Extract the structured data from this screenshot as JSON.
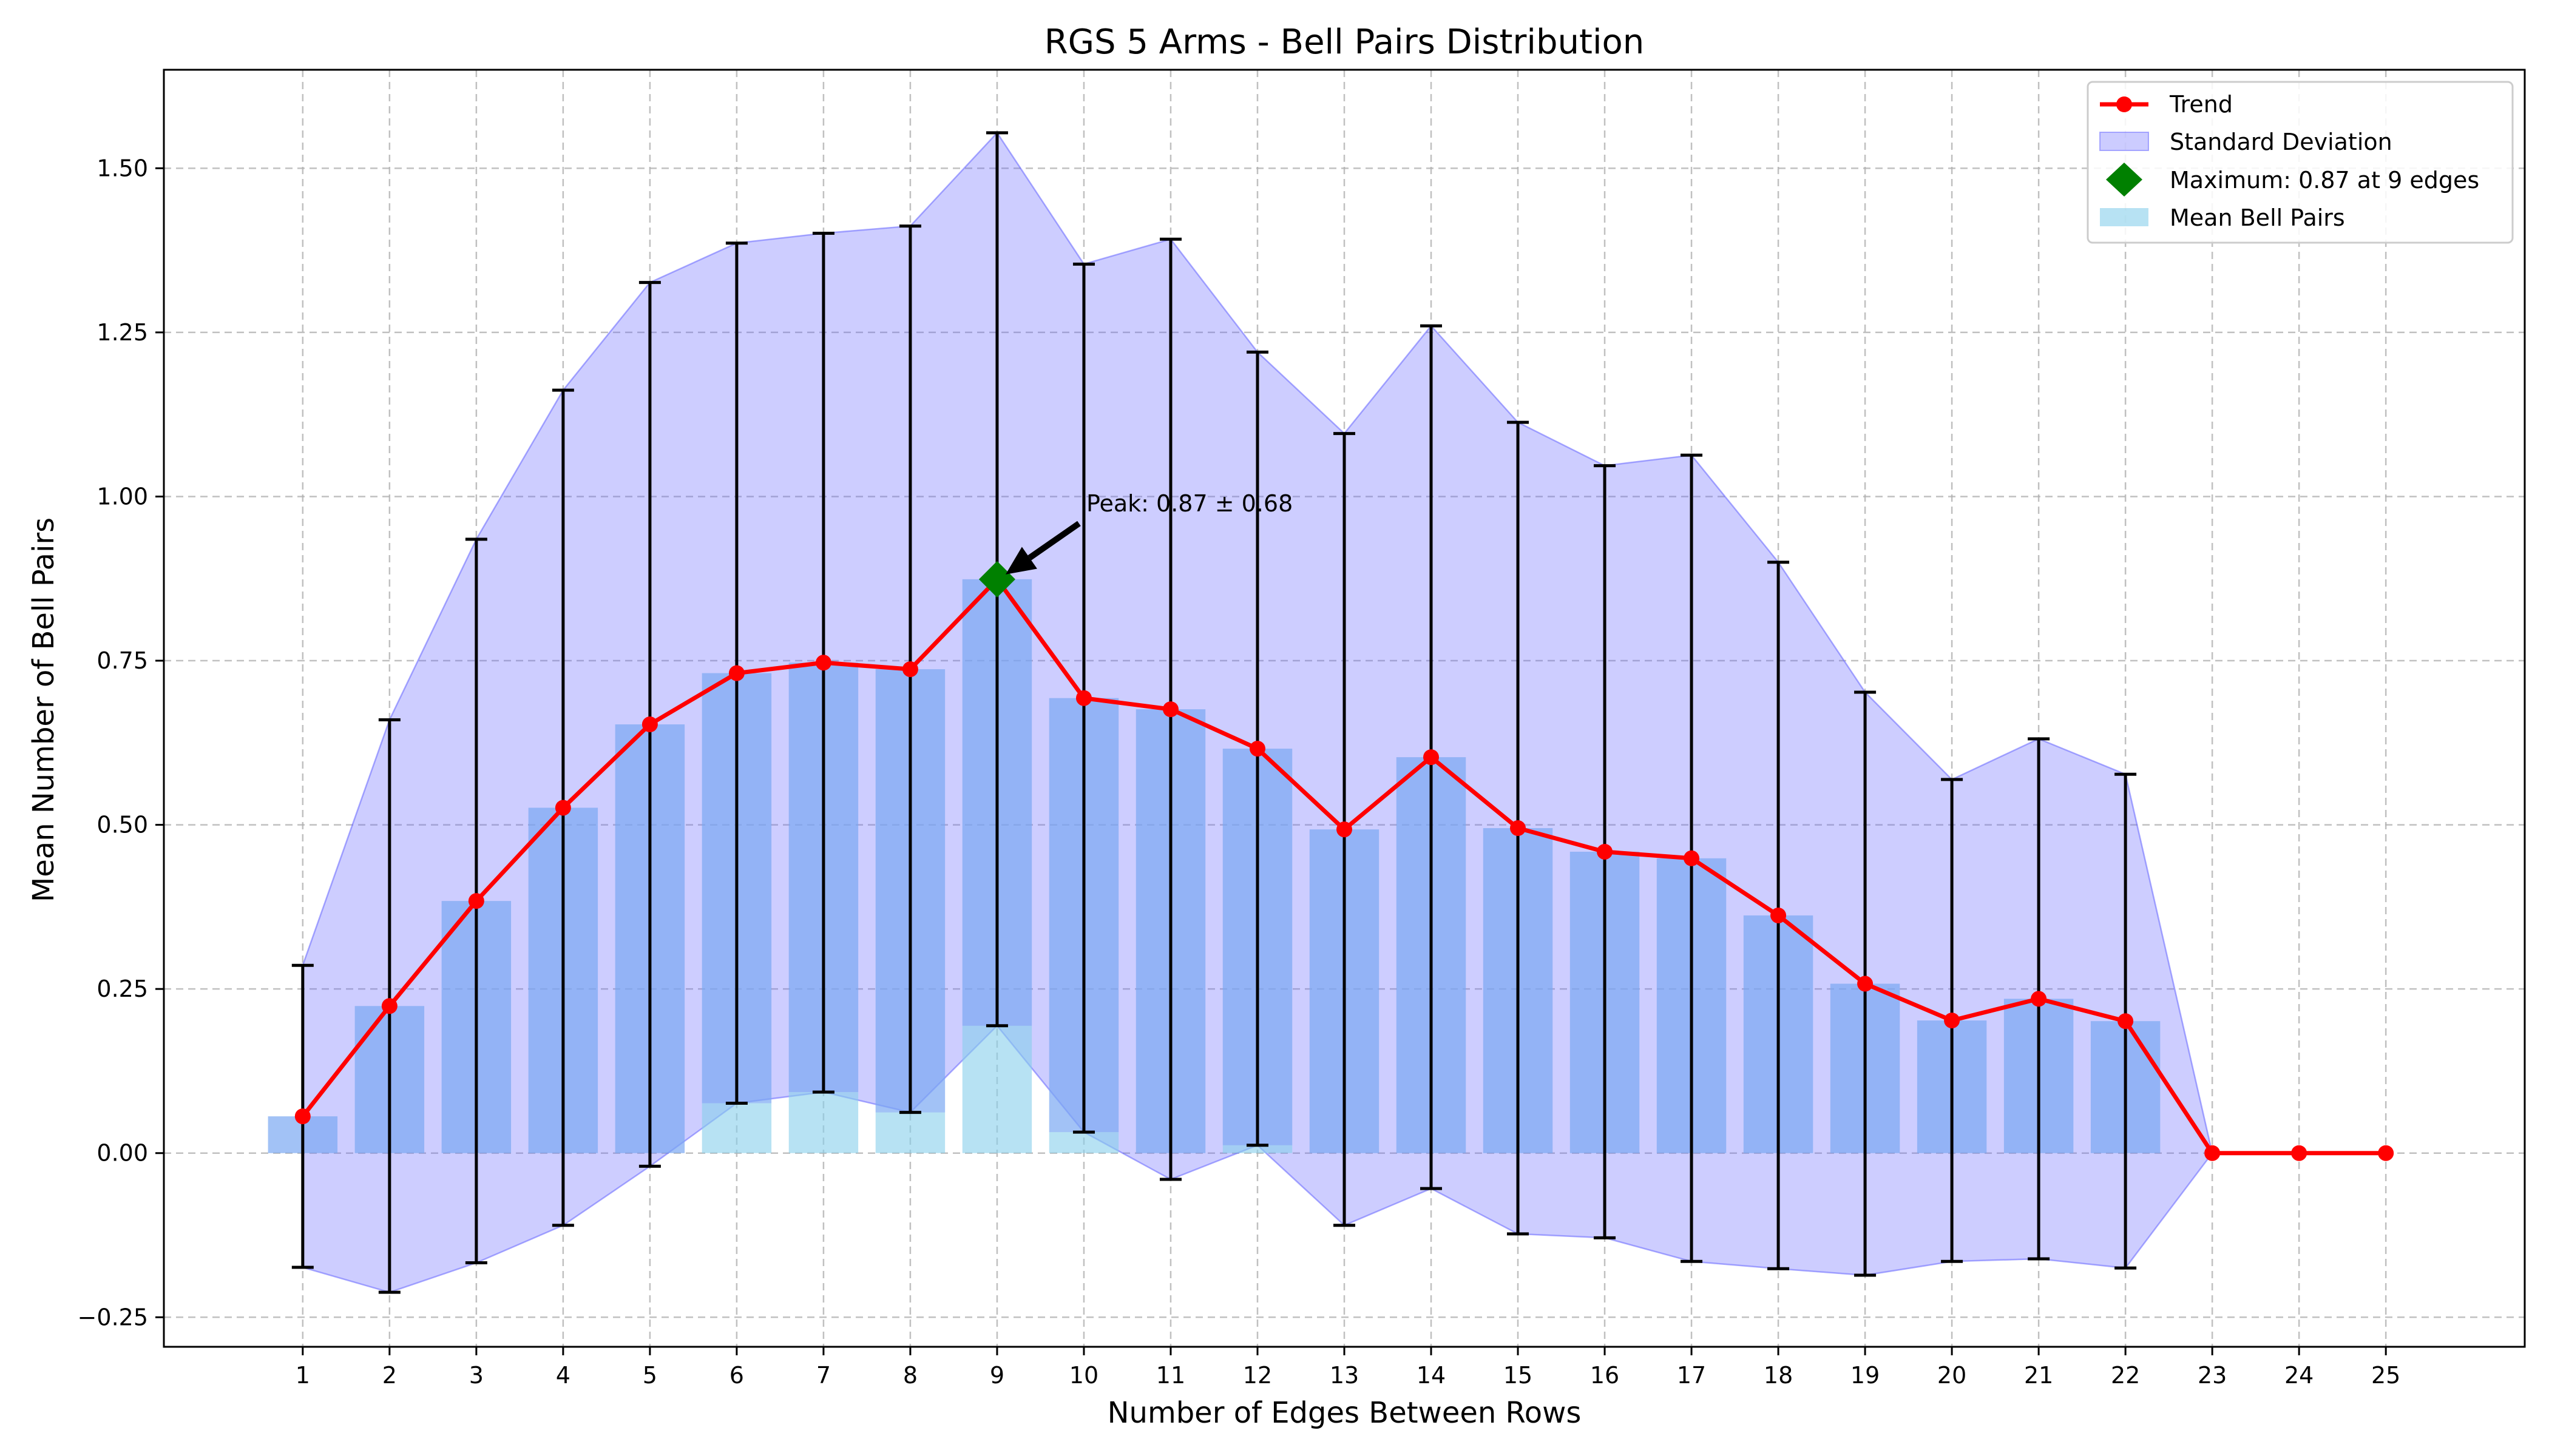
{
  "chart_data": {
    "type": "bar",
    "title": "RGS 5 Arms - Bell Pairs Distribution",
    "xlabel": "Number of Edges Between Rows",
    "ylabel": "Mean Number of Bell Pairs",
    "x": [
      1,
      2,
      3,
      4,
      5,
      6,
      7,
      8,
      9,
      10,
      11,
      12,
      13,
      14,
      15,
      16,
      17,
      18,
      19,
      20,
      21,
      22,
      23,
      24,
      25
    ],
    "x_tick_labels": [
      "1",
      "2",
      "3",
      "4",
      "5",
      "6",
      "7",
      "8",
      "9",
      "10",
      "11",
      "12",
      "13",
      "14",
      "15",
      "16",
      "17",
      "18",
      "19",
      "20",
      "21",
      "22",
      "23",
      "24",
      "25"
    ],
    "ylim": [
      -0.295,
      1.65
    ],
    "y_ticks": [
      -0.25,
      0.0,
      0.25,
      0.5,
      0.75,
      1.0,
      1.25,
      1.5
    ],
    "y_tick_labels": [
      "−0.25",
      "0.00",
      "0.25",
      "0.50",
      "0.75",
      "1.00",
      "1.25",
      "1.50"
    ],
    "grid": true,
    "legend_position": "top-right",
    "series": [
      {
        "name": "Mean Bell Pairs",
        "type": "bar",
        "color": "#87ceeb",
        "values": [
          0.056,
          0.224,
          0.384,
          0.526,
          0.653,
          0.731,
          0.747,
          0.737,
          0.874,
          0.693,
          0.676,
          0.616,
          0.493,
          0.603,
          0.495,
          0.459,
          0.449,
          0.362,
          0.258,
          0.202,
          0.235,
          0.201,
          0.0,
          0.0,
          0.0
        ]
      },
      {
        "name": "Standard Deviation",
        "type": "band",
        "color": "#6464ff",
        "errors": [
          0.23,
          0.436,
          0.551,
          0.636,
          0.673,
          0.655,
          0.654,
          0.675,
          0.68,
          0.661,
          0.716,
          0.604,
          0.603,
          0.657,
          0.618,
          0.588,
          0.614,
          0.538,
          0.444,
          0.367,
          0.396,
          0.376,
          0.0,
          0.0,
          0.0
        ]
      },
      {
        "name": "Trend",
        "type": "line",
        "color": "#ff0000"
      },
      {
        "name": "Maximum: 0.87 at 9 edges",
        "type": "marker",
        "color": "#008000",
        "x": 9,
        "y": 0.874
      }
    ],
    "annotations": [
      {
        "text": "Peak: 0.87 ± 0.68",
        "x": 9,
        "y": 0.874
      }
    ]
  }
}
